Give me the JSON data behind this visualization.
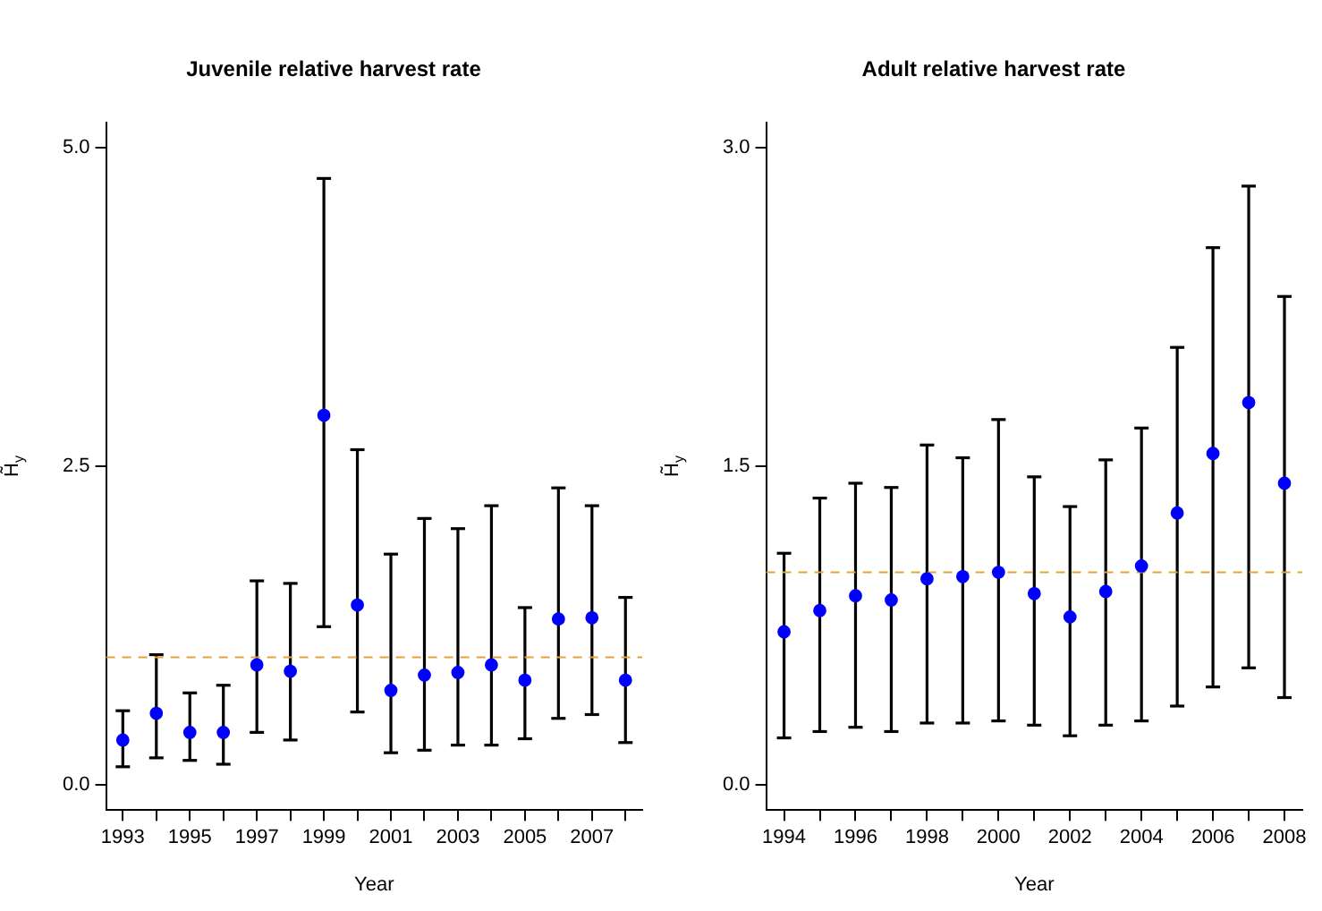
{
  "chart_data": [
    {
      "type": "scatter",
      "title": "Juvenile relative harvest rate",
      "xlabel": "Year",
      "ylabel": "H̃$_{y}$",
      "x": [
        1993,
        1994,
        1995,
        1996,
        1997,
        1998,
        1999,
        2000,
        2001,
        2002,
        2003,
        2004,
        2005,
        2006,
        2007,
        2008
      ],
      "series": [
        {
          "color": "#0000ff",
          "values": [
            0.35,
            0.56,
            0.41,
            0.41,
            0.94,
            0.89,
            2.9,
            1.41,
            0.74,
            0.86,
            0.88,
            0.94,
            0.82,
            1.3,
            1.31,
            0.82
          ],
          "errors": [
            [
              0.14,
              0.58
            ],
            [
              0.21,
              1.02
            ],
            [
              0.19,
              0.72
            ],
            [
              0.16,
              0.78
            ],
            [
              0.41,
              1.6
            ],
            [
              0.35,
              1.58
            ],
            [
              1.24,
              4.76
            ],
            [
              0.57,
              2.63
            ],
            [
              0.25,
              1.81
            ],
            [
              0.27,
              2.09
            ],
            [
              0.31,
              2.01
            ],
            [
              0.31,
              2.19
            ],
            [
              0.36,
              1.39
            ],
            [
              0.52,
              2.33
            ],
            [
              0.55,
              2.19
            ],
            [
              0.33,
              1.47
            ]
          ]
        }
      ],
      "xlim": [
        1992.5,
        2008.5
      ],
      "xticks": [
        1993,
        {
          "value": 1994,
          "label": null
        },
        1995,
        {
          "value": 1996,
          "label": null
        },
        1997,
        {
          "value": 1998,
          "label": null
        },
        1999,
        {
          "value": 2000,
          "label": null
        },
        2001,
        {
          "value": 2002,
          "label": null
        },
        2003,
        {
          "value": 2004,
          "label": null
        },
        2005,
        {
          "value": 2006,
          "label": null
        },
        2007,
        {
          "value": 2008,
          "label": null
        }
      ],
      "ylim": [
        -0.2,
        5.2
      ],
      "yticks": [
        {
          "value": 0,
          "label": "0.0"
        },
        {
          "value": 2.5,
          "label": "2.5"
        },
        {
          "value": 5,
          "label": "5.0"
        }
      ],
      "ref_lines": [
        {
          "axis": "y",
          "value": 1,
          "color": "#e6a23c",
          "line_style": "dashed"
        }
      ],
      "grid": false,
      "legend": false,
      "marker": "circle"
    },
    {
      "type": "scatter",
      "title": "Adult relative harvest rate",
      "xlabel": "Year",
      "ylabel": "H̃$_{y}$",
      "x": [
        1994,
        1995,
        1996,
        1997,
        1998,
        1999,
        2000,
        2001,
        2002,
        2003,
        2004,
        2005,
        2006,
        2007,
        2008
      ],
      "series": [
        {
          "color": "#0000ff",
          "values": [
            0.72,
            0.82,
            0.89,
            0.87,
            0.97,
            0.98,
            1.0,
            0.9,
            0.79,
            0.91,
            1.03,
            1.28,
            1.56,
            1.8,
            1.42
          ],
          "errors": [
            [
              0.22,
              1.09
            ],
            [
              0.25,
              1.35
            ],
            [
              0.27,
              1.42
            ],
            [
              0.25,
              1.4
            ],
            [
              0.29,
              1.6
            ],
            [
              0.29,
              1.54
            ],
            [
              0.3,
              1.72
            ],
            [
              0.28,
              1.45
            ],
            [
              0.23,
              1.31
            ],
            [
              0.28,
              1.53
            ],
            [
              0.3,
              1.68
            ],
            [
              0.37,
              2.06
            ],
            [
              0.46,
              2.53
            ],
            [
              0.55,
              2.82
            ],
            [
              0.41,
              2.3
            ]
          ]
        }
      ],
      "xlim": [
        1993.5,
        2008.5
      ],
      "xticks": [
        1994,
        {
          "value": 1995,
          "label": null
        },
        1996,
        {
          "value": 1997,
          "label": null
        },
        1998,
        {
          "value": 1999,
          "label": null
        },
        2000,
        {
          "value": 2001,
          "label": null
        },
        2002,
        {
          "value": 2003,
          "label": null
        },
        2004,
        {
          "value": 2005,
          "label": null
        },
        2006,
        {
          "value": 2007,
          "label": null
        },
        2008
      ],
      "ylim": [
        -0.12,
        3.12
      ],
      "yticks": [
        {
          "value": 0,
          "label": "0.0"
        },
        {
          "value": 1.5,
          "label": "1.5"
        },
        {
          "value": 3,
          "label": "3.0"
        }
      ],
      "ref_lines": [
        {
          "axis": "y",
          "value": 1,
          "color": "#e6a23c",
          "line_style": "dashed"
        }
      ],
      "grid": false,
      "legend": false,
      "marker": "circle"
    }
  ]
}
